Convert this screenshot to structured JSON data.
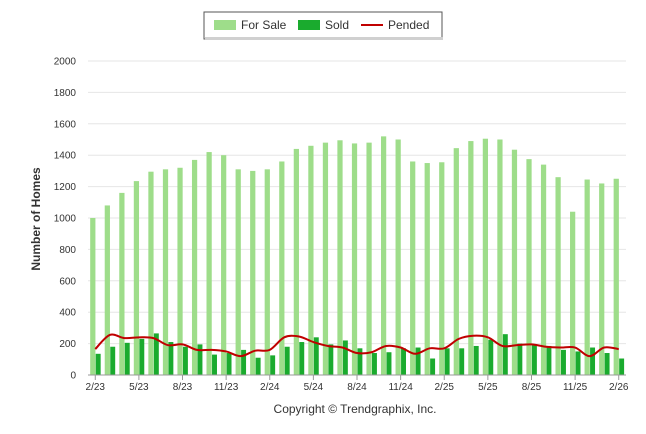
{
  "chart_data": {
    "type": "bar",
    "ylabel": "Number of Homes",
    "ylim": [
      0,
      2000
    ],
    "yticks": [
      0,
      200,
      400,
      600,
      800,
      1000,
      1200,
      1400,
      1600,
      1800,
      2000
    ],
    "grid": true,
    "legend_position": "top-center",
    "x_tick_labels": [
      "2/23",
      "5/23",
      "8/23",
      "11/23",
      "2/24",
      "5/24",
      "8/24",
      "11/24",
      "2/25",
      "5/25",
      "8/25",
      "11/25",
      "2/26"
    ],
    "categories": [
      "2/23",
      "3/23",
      "4/23",
      "5/23",
      "6/23",
      "7/23",
      "8/23",
      "9/23",
      "10/23",
      "11/23",
      "12/23",
      "1/24",
      "2/24",
      "3/24",
      "4/24",
      "5/24",
      "6/24",
      "7/24",
      "8/24",
      "9/24",
      "10/24",
      "11/24",
      "12/24",
      "1/25",
      "2/25",
      "3/25",
      "4/25",
      "5/25",
      "6/25",
      "7/25",
      "8/25",
      "9/25",
      "10/25",
      "11/25",
      "12/25",
      "1/26",
      "2/26"
    ],
    "series": [
      {
        "name": "For Sale",
        "kind": "bar",
        "color": "#9edd8a",
        "values": [
          1000,
          1080,
          1160,
          1235,
          1295,
          1310,
          1320,
          1370,
          1420,
          1400,
          1310,
          1300,
          1310,
          1360,
          1440,
          1460,
          1480,
          1495,
          1475,
          1480,
          1520,
          1500,
          1360,
          1350,
          1355,
          1445,
          1490,
          1505,
          1500,
          1435,
          1375,
          1340,
          1260,
          1040,
          1245,
          1220,
          1250
        ]
      },
      {
        "name": "Sold",
        "kind": "bar",
        "color": "#1aab2e",
        "values": [
          135,
          180,
          205,
          230,
          265,
          210,
          180,
          195,
          130,
          140,
          160,
          110,
          125,
          180,
          210,
          240,
          195,
          220,
          170,
          140,
          145,
          170,
          175,
          105,
          170,
          170,
          185,
          225,
          260,
          200,
          190,
          185,
          160,
          150,
          175,
          140,
          105
        ]
      },
      {
        "name": "Pended",
        "kind": "line",
        "color": "#c00000",
        "values": [
          165,
          255,
          235,
          240,
          235,
          190,
          195,
          160,
          160,
          150,
          120,
          155,
          160,
          240,
          245,
          210,
          185,
          175,
          140,
          145,
          185,
          175,
          135,
          170,
          170,
          230,
          250,
          240,
          185,
          190,
          195,
          180,
          175,
          175,
          120,
          175,
          165
        ]
      }
    ],
    "copyright": "Copyright © Trendgraphix, Inc."
  }
}
